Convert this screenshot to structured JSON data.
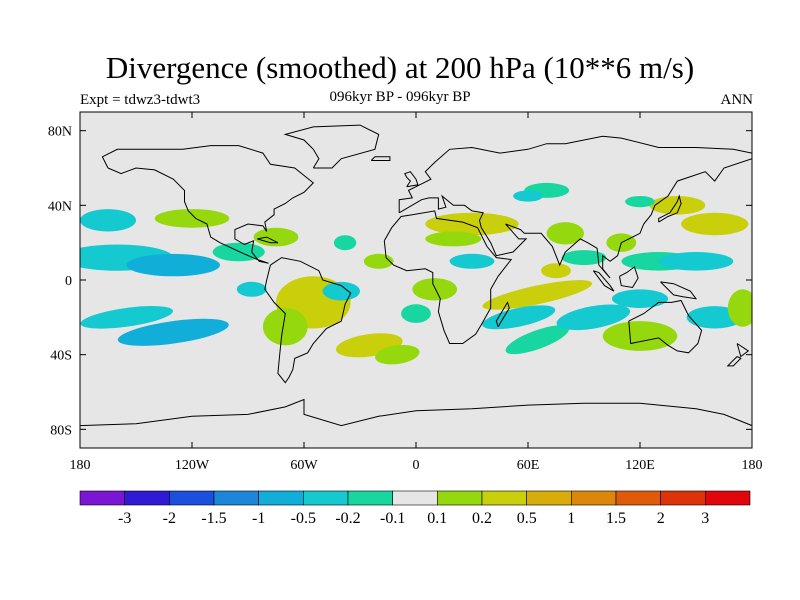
{
  "title": "Divergence (smoothed) at 200 hPa (10**6 m/s)",
  "subtitle": "096kyr BP - 096kyr BP",
  "experiment": "Expt = tdwz3-tdwt3",
  "season": "ANN",
  "map": {
    "projection": "cylindrical equidistant",
    "lon_range": [
      -180,
      180
    ],
    "lat_range": [
      -90,
      90
    ],
    "lat_ticks": [
      {
        "value": 80,
        "label": "80N"
      },
      {
        "value": 40,
        "label": "40N"
      },
      {
        "value": 0,
        "label": "0"
      },
      {
        "value": -40,
        "label": "40S"
      },
      {
        "value": -80,
        "label": "80S"
      }
    ],
    "lon_ticks": [
      {
        "value": -180,
        "label": "180"
      },
      {
        "value": -120,
        "label": "120W"
      },
      {
        "value": -60,
        "label": "60W"
      },
      {
        "value": 0,
        "label": "0"
      },
      {
        "value": 60,
        "label": "60E"
      },
      {
        "value": 120,
        "label": "120E"
      },
      {
        "value": 180,
        "label": "180"
      }
    ],
    "background_color": "#e6e6e6",
    "coastline_color": "#000000"
  },
  "colorbar": {
    "colors": [
      "#7b16d4",
      "#2f1bd6",
      "#1b4fdc",
      "#1c86d9",
      "#11aed9",
      "#14c9cf",
      "#18d6a0",
      "#e6e6e6",
      "#96d80e",
      "#c9cf0a",
      "#d8ad0a",
      "#dc870a",
      "#dd5b0a",
      "#dd330b",
      "#e0060b"
    ],
    "labels": [
      "-3",
      "-2",
      "-1.5",
      "-1",
      "-0.5",
      "-0.2",
      "-0.1",
      "0.1",
      "0.2",
      "0.5",
      "1",
      "1.5",
      "2",
      "3"
    ]
  }
}
